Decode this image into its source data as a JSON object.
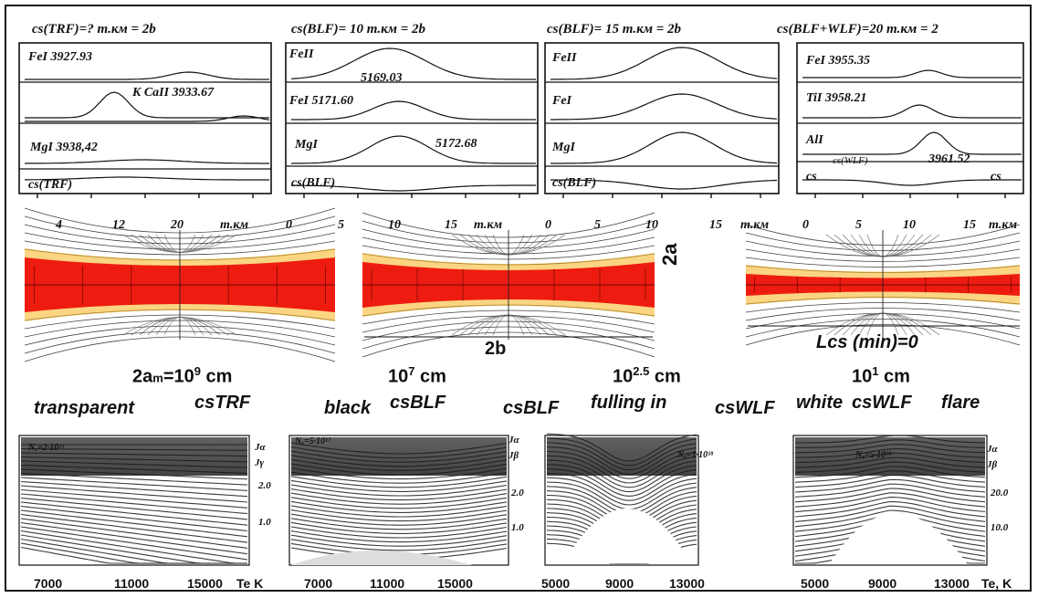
{
  "spectral_panels": [
    {
      "title": "cs(TRF)=? m.км = 2b",
      "labels": [
        "FeI 3927.93",
        "K CaII 3933.67",
        "MgI 3938,42",
        "cs(TRF)"
      ],
      "ticks": [
        "4",
        "12",
        "20",
        "m.км"
      ]
    },
    {
      "title": "cs(BLF)= 10 m.км = 2b",
      "labels": [
        "FeII",
        "5169.03",
        "FeI 5171.60",
        "MgI",
        "5172.68",
        "cs(BLF)"
      ],
      "ticks": [
        "0",
        "5",
        "10",
        "15",
        "m.км"
      ]
    },
    {
      "title": "cs(BLF)= 15 m.км = 2b",
      "labels": [
        "FeII",
        "FeI",
        "MgI",
        "cs(BLF)"
      ],
      "ticks": [
        "0",
        "5",
        "10",
        "15",
        "m.км"
      ]
    },
    {
      "title": "cs(BLF+WLF)=20 m.км = 2",
      "labels": [
        "FeI 3955.35",
        "TiI 3958.21",
        "AlI",
        "cs(WLF)",
        "3961.52",
        "cs",
        "cs"
      ],
      "ticks": [
        "0",
        "5",
        "10",
        "15",
        "m.км"
      ]
    }
  ],
  "diagram": {
    "label_2a": "2a",
    "label_2b": "2b",
    "label_lcs": "Lcs (min)=0"
  },
  "scales": [
    {
      "base": "2a",
      "sub": "m",
      "rest": "=10",
      "sup": "9",
      "unit": "cm"
    },
    {
      "base": "10",
      "sup": "7",
      "unit": "cm"
    },
    {
      "base": "10",
      "sup": "2.5",
      "unit": "cm"
    },
    {
      "base": "10",
      "sup": "1",
      "unit": "cm"
    }
  ],
  "classification": [
    "transparent",
    "csTRF",
    "black",
    "csBLF",
    "csBLF",
    "fulling in",
    "csWLF",
    "white",
    "csWLF",
    "flare"
  ],
  "bottom_panels": [
    {
      "n_label": "Nₑ=2·10¹⁵",
      "y_label_top": "Jα",
      "y_label_bottom": "Jγ",
      "y_ticks": [
        "2.0",
        "1.0"
      ],
      "x_ticks": [
        "7000",
        "11000",
        "15000",
        "Te K"
      ]
    },
    {
      "n_label": "Nₑ=5·10¹⁷",
      "y_label_top": "Jα",
      "y_label_bottom": "Jβ",
      "y_ticks": [
        "2.0",
        "1.0"
      ],
      "x_ticks": [
        "7000",
        "11000",
        "15000"
      ]
    },
    {
      "n_label": "Nₑ=1·10¹⁸",
      "y_label_top": "",
      "y_label_bottom": "",
      "y_ticks": [],
      "x_ticks": [
        "5000",
        "9000",
        "13000"
      ]
    },
    {
      "n_label": "Nₑ=5·10¹⁸",
      "y_label_top": "Jα",
      "y_label_bottom": "Jβ",
      "y_ticks": [
        "20.0",
        "10.0"
      ],
      "x_ticks": [
        "5000",
        "9000",
        "13000",
        "Te, K"
      ]
    }
  ],
  "colors": {
    "sheet": "#ee1c10",
    "glow": "#f7b21c",
    "ink": "#111111"
  }
}
